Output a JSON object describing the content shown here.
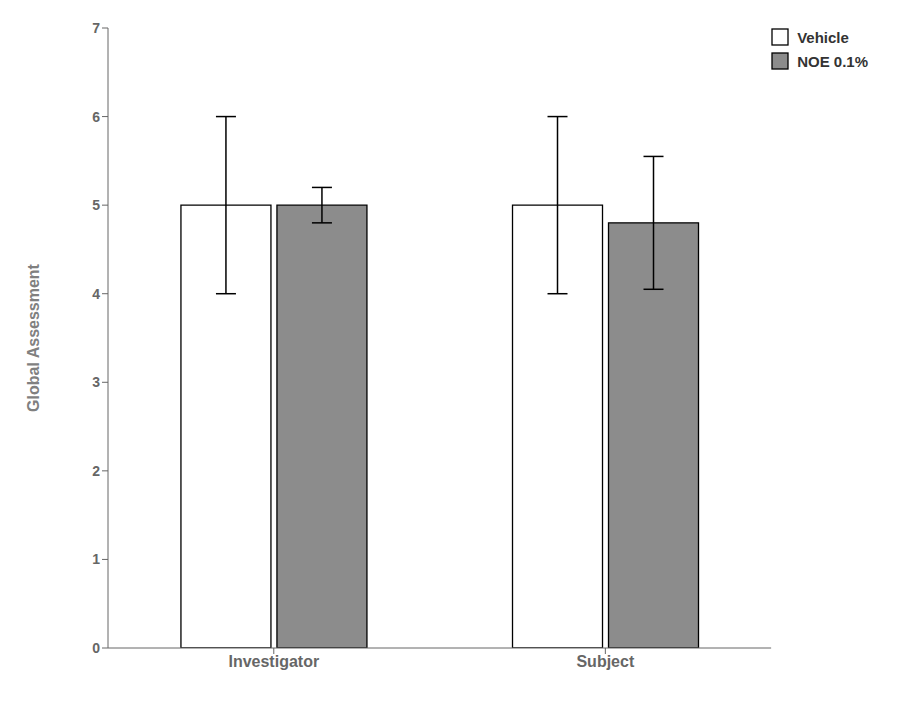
{
  "chart_data": {
    "type": "bar",
    "categories": [
      "Investigator",
      "Subject"
    ],
    "series": [
      {
        "name": "Vehicle",
        "color": "#ffffff",
        "values": [
          5.0,
          5.0
        ],
        "errors": [
          1.0,
          1.0
        ]
      },
      {
        "name": "NOE 0.1%",
        "color": "#8c8c8c",
        "values": [
          5.0,
          4.8
        ],
        "errors": [
          0.2,
          0.75
        ]
      }
    ],
    "ylabel": "Global Assessment",
    "ylim": [
      0,
      7
    ],
    "yticks": [
      0,
      1,
      2,
      3,
      4,
      5,
      6,
      7
    ],
    "legend": "upper right",
    "grid": false
  }
}
